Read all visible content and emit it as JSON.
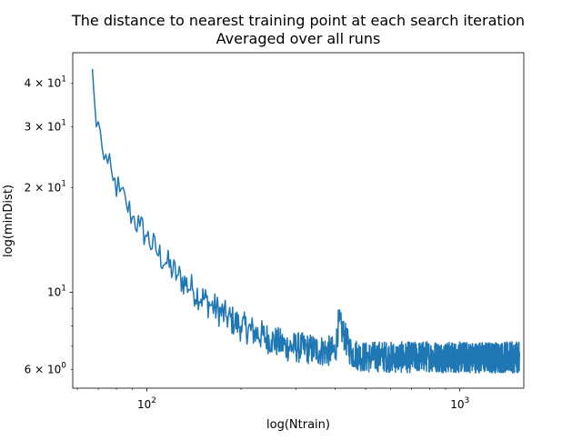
{
  "chart_data": {
    "type": "line",
    "title": "The distance to nearest training point at each search iteration",
    "subtitle": "Averaged over all runs",
    "xlabel": "log(Ntrain)",
    "ylabel": "log(minDist)",
    "xscale": "log",
    "yscale": "log",
    "xlim": [
      58,
      1600
    ],
    "ylim": [
      5.3,
      49
    ],
    "grid": false,
    "legend": "none",
    "x_ticks": [
      {
        "value": 100,
        "base": "10",
        "exp": "2"
      },
      {
        "value": 1000,
        "base": "10",
        "exp": "3"
      }
    ],
    "y_ticks": [
      {
        "value": 6,
        "label": "6 × 10",
        "exp": "0"
      },
      {
        "value": 10,
        "label": "10",
        "exp": "1"
      },
      {
        "value": 20,
        "label": "2 × 10",
        "exp": "1"
      },
      {
        "value": 30,
        "label": "3 × 10",
        "exp": "1"
      },
      {
        "value": 40,
        "label": "4 × 10",
        "exp": "1"
      }
    ],
    "series": [
      {
        "color": "#1f77b4",
        "x_start": 67,
        "x_end": 1550,
        "x": [
          67,
          68,
          69,
          70,
          72,
          75,
          78,
          82,
          86,
          90,
          95,
          100,
          107,
          115,
          125,
          140,
          160,
          180,
          200,
          220,
          250,
          280,
          320,
          360,
          400,
          410,
          450,
          500,
          560,
          620,
          700,
          800,
          900,
          1000,
          1100,
          1200,
          1300,
          1400,
          1500,
          1550
        ],
        "y": [
          44,
          36,
          30,
          31,
          26,
          23.5,
          21,
          19.5,
          18,
          16.5,
          15.5,
          14.5,
          13.2,
          12.2,
          11.2,
          10.2,
          9.2,
          8.5,
          8.0,
          7.7,
          7.3,
          7.0,
          6.9,
          6.8,
          6.75,
          8.2,
          6.7,
          6.5,
          6.55,
          6.5,
          6.5,
          6.55,
          6.5,
          6.5,
          6.5,
          6.5,
          6.5,
          6.5,
          6.5,
          6.5
        ],
        "noise_amplitude": 0.045
      }
    ]
  }
}
